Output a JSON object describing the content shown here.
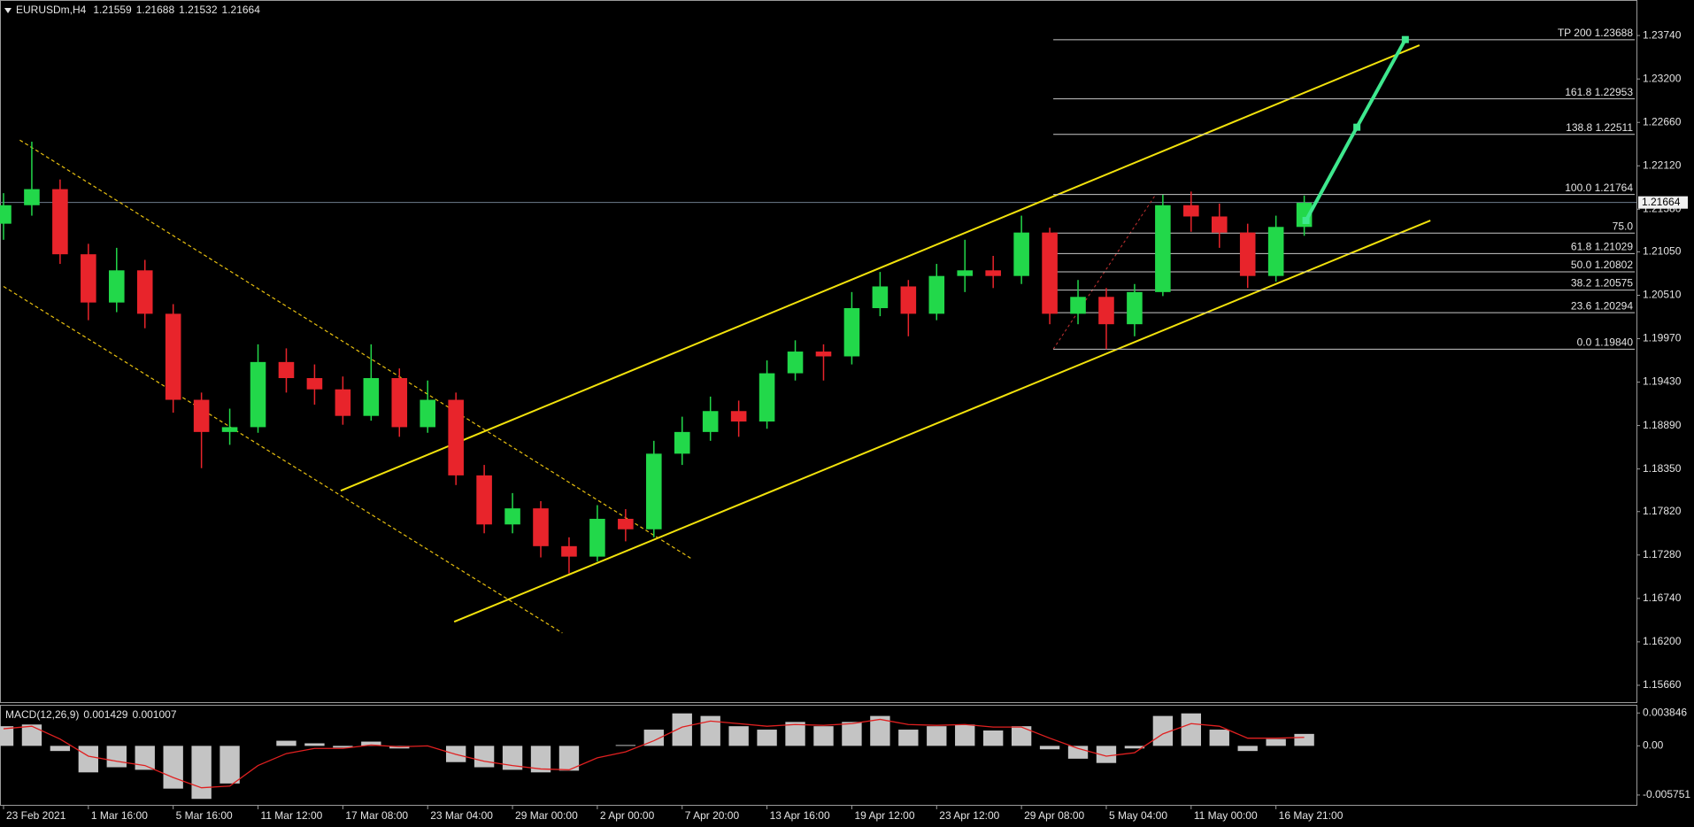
{
  "symbol": "EURUSDm,H4",
  "quote": [
    1.21559,
    1.21688,
    1.21532,
    1.21664
  ],
  "chart_data": [
    {
      "type": "candlestick",
      "x": [
        0,
        8,
        16,
        24,
        32,
        40,
        48,
        56,
        64,
        72,
        80,
        88,
        96,
        104,
        112,
        120,
        128,
        136,
        144,
        152,
        160,
        168,
        176,
        184,
        192,
        200,
        208,
        216,
        224,
        232,
        240,
        248,
        256,
        264,
        272,
        280,
        288,
        296,
        304,
        312,
        320,
        328,
        336,
        344,
        352,
        360,
        368
      ],
      "open": [
        1.214,
        1.2163,
        1.2183,
        1.2102,
        1.2042,
        1.2082,
        1.2028,
        1.1921,
        1.1881,
        1.1887,
        1.1968,
        1.1948,
        1.1934,
        1.1901,
        1.1948,
        1.1887,
        1.1921,
        1.1827,
        1.1766,
        1.1786,
        1.1739,
        1.1726,
        1.1773,
        1.176,
        1.1854,
        1.1881,
        1.1907,
        1.1894,
        1.1954,
        1.1981,
        1.1975,
        1.2035,
        1.2062,
        1.2028,
        1.2075,
        1.2082,
        1.2075,
        1.2129,
        1.2028,
        1.2049,
        1.2015,
        1.2055,
        1.2163,
        1.2149,
        1.2129,
        1.2075,
        1.2136
      ],
      "high": [
        1.2178,
        1.2242,
        1.2195,
        1.2115,
        1.211,
        1.2095,
        1.204,
        1.193,
        1.191,
        1.199,
        1.1985,
        1.1965,
        1.195,
        1.199,
        1.196,
        1.1945,
        1.193,
        1.184,
        1.1805,
        1.1795,
        1.175,
        1.179,
        1.1785,
        1.187,
        1.19,
        1.1925,
        1.192,
        1.197,
        1.1995,
        1.199,
        1.2055,
        1.208,
        1.207,
        1.209,
        1.212,
        1.21,
        1.215,
        1.2135,
        1.207,
        1.206,
        1.2065,
        1.2176,
        1.218,
        1.2165,
        1.214,
        1.215,
        1.2175
      ],
      "low": [
        1.212,
        1.215,
        1.209,
        1.202,
        1.203,
        1.201,
        1.1905,
        1.1836,
        1.1865,
        1.188,
        1.193,
        1.1915,
        1.189,
        1.1895,
        1.1875,
        1.188,
        1.1815,
        1.1755,
        1.1755,
        1.1725,
        1.1705,
        1.172,
        1.1745,
        1.175,
        1.184,
        1.187,
        1.1875,
        1.1885,
        1.1945,
        1.1945,
        1.1965,
        1.2025,
        1.2,
        1.202,
        1.2055,
        1.206,
        1.2065,
        1.2015,
        1.2015,
        1.1984,
        1.2,
        1.205,
        1.213,
        1.211,
        1.206,
        1.2068,
        1.2125
      ],
      "close": [
        1.2163,
        1.2183,
        1.2102,
        1.2042,
        1.2082,
        1.2028,
        1.1921,
        1.1881,
        1.1887,
        1.1968,
        1.1948,
        1.1934,
        1.1901,
        1.1948,
        1.1887,
        1.1921,
        1.1827,
        1.1766,
        1.1786,
        1.1739,
        1.1726,
        1.1773,
        1.176,
        1.1854,
        1.1881,
        1.1907,
        1.1894,
        1.1954,
        1.1981,
        1.1975,
        1.2035,
        1.2062,
        1.2028,
        1.2075,
        1.2082,
        1.2075,
        1.2129,
        1.2028,
        1.2049,
        1.2015,
        1.2055,
        1.2163,
        1.2149,
        1.2129,
        1.2075,
        1.2136,
        1.2166
      ],
      "up_color": "#22d84a",
      "down_color": "#e8242b",
      "xlim": [
        -1,
        462
      ],
      "ylim": [
        1.1545,
        1.2416
      ],
      "xticks": [
        {
          "value": 0,
          "label": "23 Feb 2021"
        },
        {
          "value": 24,
          "label": "1 Mar 16:00"
        },
        {
          "value": 48,
          "label": "5 Mar 16:00"
        },
        {
          "value": 72,
          "label": "11 Mar 12:00"
        },
        {
          "value": 96,
          "label": "17 Mar 08:00"
        },
        {
          "value": 120,
          "label": "23 Mar 04:00"
        },
        {
          "value": 144,
          "label": "29 Mar 00:00"
        },
        {
          "value": 168,
          "label": "2 Apr 00:00"
        },
        {
          "value": 192,
          "label": "7 Apr 20:00"
        },
        {
          "value": 216,
          "label": "13 Apr 16:00"
        },
        {
          "value": 240,
          "label": "19 Apr 12:00"
        },
        {
          "value": 264,
          "label": "23 Apr 12:00"
        },
        {
          "value": 288,
          "label": "29 Apr 08:00"
        },
        {
          "value": 312,
          "label": "5 May 04:00"
        },
        {
          "value": 336,
          "label": "11 May 00:00"
        },
        {
          "value": 360,
          "label": "16 May 21:00"
        }
      ],
      "yticks": [
        {
          "value": 1.2374,
          "label": "1.23740"
        },
        {
          "value": 1.232,
          "label": "1.23200"
        },
        {
          "value": 1.2266,
          "label": "1.22660"
        },
        {
          "value": 1.2212,
          "label": "1.22120"
        },
        {
          "value": 1.2158,
          "label": "1.21580"
        },
        {
          "value": 1.2105,
          "label": "1.21050"
        },
        {
          "value": 1.2051,
          "label": "1.20510"
        },
        {
          "value": 1.1997,
          "label": "1.19970"
        },
        {
          "value": 1.1943,
          "label": "1.19430"
        },
        {
          "value": 1.1889,
          "label": "1.18890"
        },
        {
          "value": 1.1835,
          "label": "1.18350"
        },
        {
          "value": 1.1782,
          "label": "1.17820"
        },
        {
          "value": 1.1728,
          "label": "1.17280"
        },
        {
          "value": 1.1674,
          "label": "1.16740"
        },
        {
          "value": 1.162,
          "label": "1.16200"
        },
        {
          "value": 1.1566,
          "label": "1.15660"
        }
      ],
      "current_price": 1.21664,
      "current_color": "#6e7b8b",
      "fibonacci": {
        "anchor_x": [
          297,
          326
        ],
        "anchor_y": [
          1.1984,
          1.21764
        ],
        "color": "#c03030",
        "level_color": "#c8c8c8",
        "levels": [
          {
            "value": 1.23688,
            "label": "TP 200 1.23688"
          },
          {
            "value": 1.22953,
            "label": "161.8 1.22953"
          },
          {
            "value": 1.22511,
            "label": "138.8 1.22511"
          },
          {
            "value": 1.21764,
            "label": "100.0 1.21764"
          },
          {
            "value": 1.21283,
            "label": "75.0"
          },
          {
            "value": 1.21029,
            "label": "61.8 1.21029"
          },
          {
            "value": 1.20802,
            "label": "50.0 1.20802"
          },
          {
            "value": 1.20575,
            "label": "38.2 1.20575"
          },
          {
            "value": 1.20294,
            "label": "23.6 1.20294"
          },
          {
            "value": 1.1984,
            "label": "0.0 1.19840"
          }
        ]
      },
      "trendlines": [
        {
          "x": [
            95.4,
            400.6
          ],
          "y": [
            1.1808,
            1.2362
          ],
          "color": "#f2e20c",
          "style": "solid"
        },
        {
          "x": [
            127.5,
            403.7
          ],
          "y": [
            1.1645,
            1.2144
          ],
          "color": "#f2e20c",
          "style": "solid"
        },
        {
          "x": [
            4.6,
            194.8
          ],
          "y": [
            1.2244,
            1.1723
          ],
          "color": "#e8c010",
          "style": "dotted"
        },
        {
          "x": [
            0,
            158.1
          ],
          "y": [
            1.2062,
            1.1631
          ],
          "color": "#e8c010",
          "style": "dotted"
        }
      ],
      "projection": {
        "x": [
          368.5,
          382.9,
          396.6
        ],
        "y": [
          1.2144,
          1.226,
          1.2369
        ],
        "color": "#3ee88e"
      }
    },
    {
      "type": "macd",
      "title": "MACD(12,26,9)",
      "current": [
        0.001429,
        0.001007
      ],
      "values": [
        0.0023,
        0.0025,
        -0.0006,
        -0.0031,
        -0.0025,
        -0.0028,
        -0.005,
        -0.0062,
        -0.0044,
        0,
        0.0006,
        0.0003,
        -0.0002,
        0.0005,
        -0.0003,
        0,
        -0.0019,
        -0.0025,
        -0.0028,
        -0.0031,
        -0.0029,
        0,
        0.0001,
        0.0019,
        0.0038,
        0.0035,
        0.0023,
        0.0019,
        0.0028,
        0.0023,
        0.0028,
        0.0035,
        0.0019,
        0.0023,
        0.0025,
        0.0018,
        0.0023,
        -0.0004,
        -0.0015,
        -0.002,
        -0.0003,
        0.0035,
        0.0038,
        0.0019,
        -0.0006,
        0.0008,
        0.0014
      ],
      "signal": [
        0.002,
        0.0023,
        0.0008,
        -0.0012,
        -0.0018,
        -0.0023,
        -0.0037,
        -0.0049,
        -0.0047,
        -0.0023,
        -0.0009,
        -0.0003,
        -0.0003,
        0.0001,
        -0.0001,
        0,
        -0.001,
        -0.0018,
        -0.0023,
        -0.0027,
        -0.0028,
        -0.0014,
        -0.0007,
        0.0006,
        0.0022,
        0.0029,
        0.0026,
        0.0023,
        0.0025,
        0.0024,
        0.0026,
        0.0031,
        0.0025,
        0.0024,
        0.0025,
        0.0022,
        0.0022,
        0.0009,
        -0.0003,
        -0.0012,
        -0.0008,
        0.0014,
        0.0026,
        0.0023,
        0.0009,
        0.0009,
        0.001
      ],
      "hist_color": "#c4c4c4",
      "signal_color": "#e02020",
      "ylim": [
        -0.0069,
        0.0047
      ],
      "yticks": [
        0.003846,
        {
          "value": 0,
          "label": "0.00"
        },
        -0.005751
      ]
    }
  ]
}
